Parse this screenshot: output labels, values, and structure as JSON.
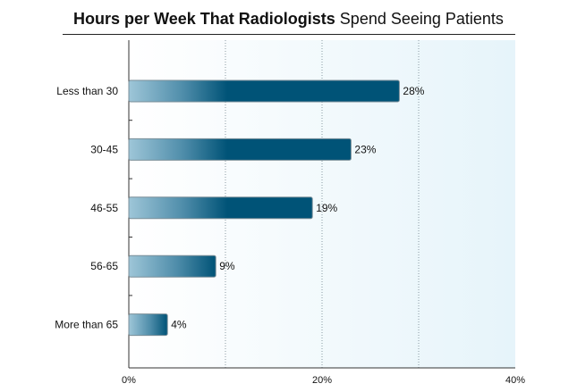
{
  "chart_data": {
    "type": "bar",
    "orientation": "horizontal",
    "title_bold": "Hours per Week That Radiologists",
    "title_regular": "Spend Seeing Patients",
    "categories": [
      "Less than 30",
      "30-45",
      "46-55",
      "56-65",
      "More than 65"
    ],
    "values": [
      28,
      23,
      19,
      9,
      4
    ],
    "value_labels": [
      "28%",
      "23%",
      "19%",
      "9%",
      "4%"
    ],
    "xlim": [
      0,
      40
    ],
    "x_ticks": [
      0,
      20,
      40
    ],
    "x_tick_labels": [
      "0%",
      "20%",
      "40%"
    ],
    "gridlines": [
      10,
      20,
      30
    ],
    "grid": true,
    "legend": "none",
    "xlabel": "",
    "ylabel": "",
    "colors": {
      "bar_dark": "#005377",
      "bar_light": "#9ec6d8",
      "plot_bg": "#eaf6fb",
      "grid": "#8a9aa3"
    }
  }
}
